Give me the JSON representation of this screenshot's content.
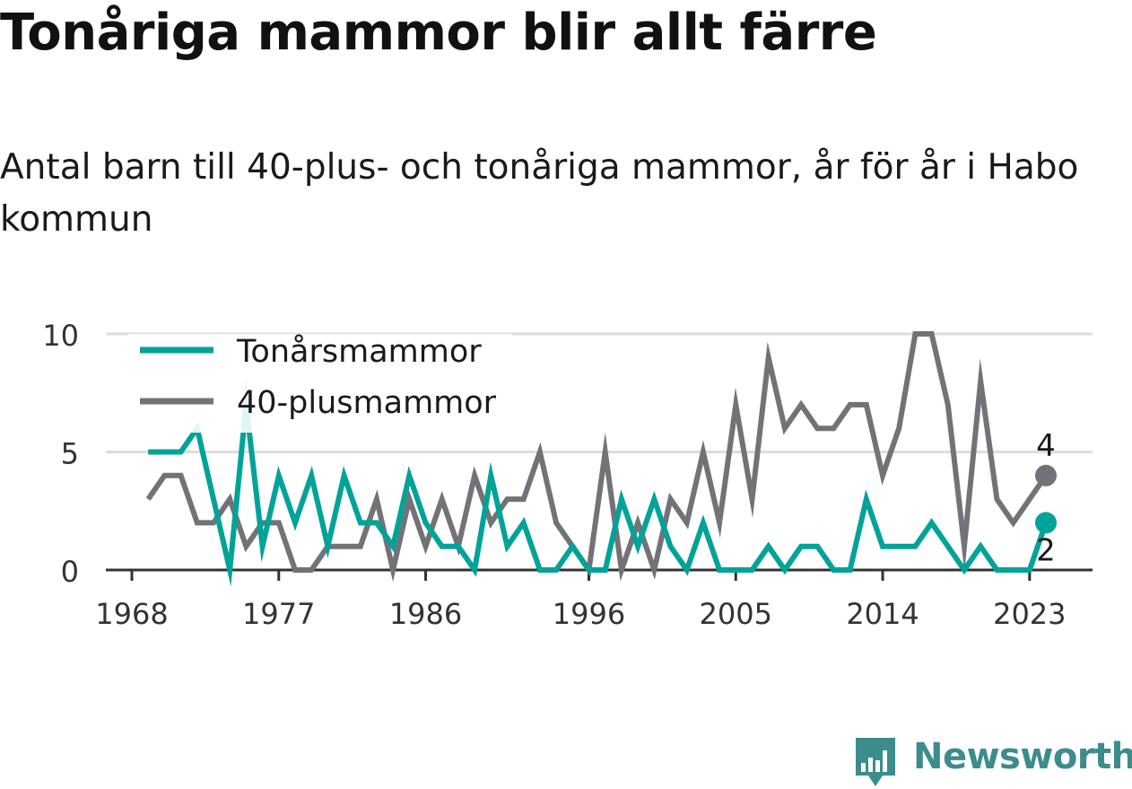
{
  "title": "Tonåriga mammor blir allt färre",
  "subtitle": "Antal barn till 40-plus- och tonåriga mammor, år för år i Habo kommun",
  "brand": {
    "name": "Newsworthy",
    "color": "#3c8c8c",
    "icon": "bar-chart-speech-bubble-icon"
  },
  "colors": {
    "teen": "#00a398",
    "forty_plus": "#737278",
    "grid": "#dddddd",
    "axis": "#333333"
  },
  "chart_data": {
    "type": "line",
    "x": [
      1969,
      1970,
      1971,
      1972,
      1973,
      1974,
      1975,
      1976,
      1977,
      1978,
      1979,
      1980,
      1981,
      1982,
      1983,
      1984,
      1985,
      1986,
      1987,
      1988,
      1989,
      1990,
      1991,
      1992,
      1993,
      1994,
      1995,
      1996,
      1997,
      1998,
      1999,
      2000,
      2001,
      2002,
      2003,
      2004,
      2005,
      2006,
      2007,
      2008,
      2009,
      2010,
      2011,
      2012,
      2013,
      2014,
      2015,
      2016,
      2017,
      2018,
      2019,
      2020,
      2021,
      2022,
      2023,
      2024
    ],
    "series": [
      {
        "name": "Tonårsmammor",
        "color": "#00a398",
        "values": [
          5,
          5,
          5,
          6,
          3,
          0,
          7,
          1,
          4,
          2,
          4,
          1,
          4,
          2,
          2,
          1,
          4,
          2,
          1,
          1,
          0,
          4,
          1,
          2,
          0,
          0,
          1,
          0,
          0,
          3,
          1,
          3,
          1,
          0,
          2,
          0,
          0,
          0,
          1,
          0,
          1,
          1,
          0,
          0,
          3,
          1,
          1,
          1,
          2,
          1,
          0,
          1,
          0,
          0,
          0,
          2
        ]
      },
      {
        "name": "40-plusmammor",
        "color": "#737278",
        "values": [
          3,
          4,
          4,
          2,
          2,
          3,
          1,
          2,
          2,
          0,
          0,
          1,
          1,
          1,
          3,
          0,
          3,
          1,
          3,
          1,
          4,
          2,
          3,
          3,
          5,
          2,
          1,
          0,
          5,
          0,
          2,
          0,
          3,
          2,
          5,
          2,
          7,
          3,
          9,
          6,
          7,
          6,
          6,
          7,
          7,
          4,
          6,
          10,
          10,
          7,
          1,
          8,
          3,
          2,
          3,
          4
        ]
      }
    ],
    "end_labels": [
      "4",
      "2"
    ],
    "x_ticks": [
      1968,
      1977,
      1986,
      1996,
      2005,
      2014,
      2023
    ],
    "y_ticks": [
      0,
      5,
      10
    ],
    "ylim": [
      0,
      10
    ],
    "xlim": [
      1968,
      2025
    ],
    "xlabel": "",
    "ylabel": "",
    "grid": true,
    "legend_position": "top-left"
  }
}
